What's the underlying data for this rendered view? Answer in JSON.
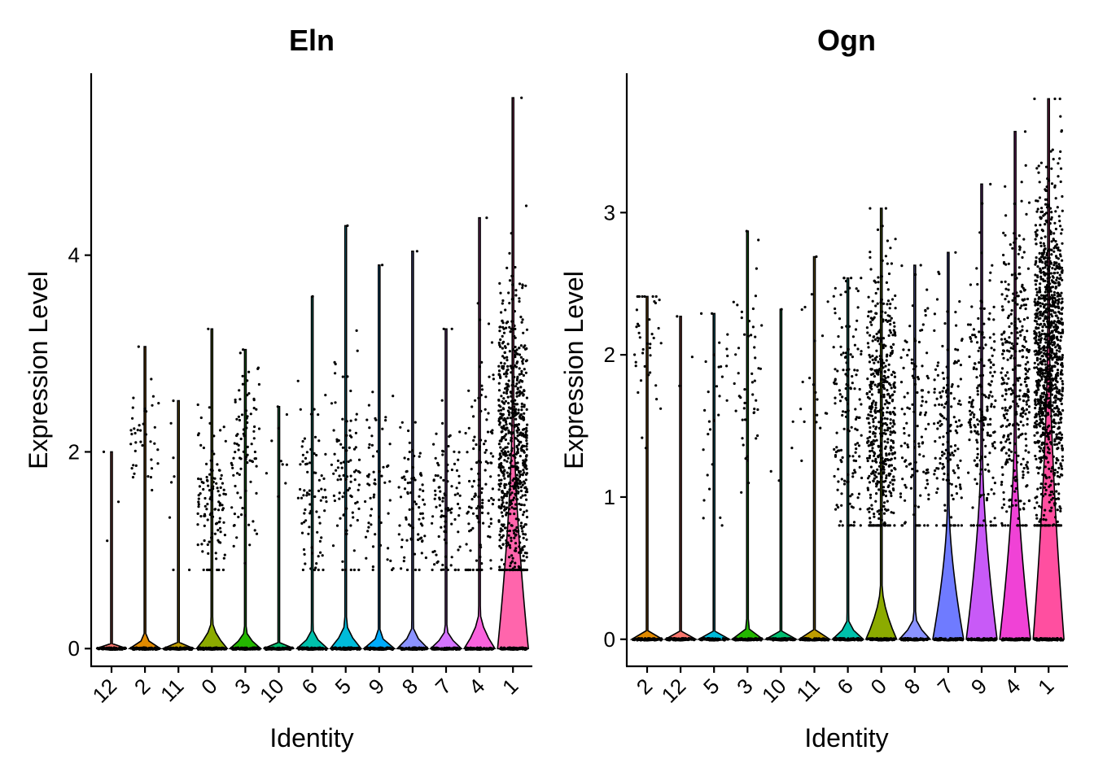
{
  "chart_data": [
    {
      "type": "violin",
      "title": "Eln",
      "xlabel": "Identity",
      "ylabel": "Expression Level",
      "ylim": [
        -0.18,
        5.85
      ],
      "yticks": [
        0,
        2,
        4
      ],
      "categories": [
        "12",
        "2",
        "11",
        "0",
        "3",
        "10",
        "6",
        "5",
        "9",
        "8",
        "7",
        "4",
        "1"
      ],
      "max_values": [
        2.0,
        3.07,
        2.52,
        3.25,
        3.04,
        2.46,
        3.58,
        4.3,
        3.9,
        4.04,
        3.25,
        4.38,
        5.6
      ],
      "n_expressing": [
        3,
        40,
        8,
        120,
        90,
        10,
        80,
        90,
        60,
        80,
        100,
        120,
        700
      ],
      "expr_center": [
        1.5,
        2.1,
        1.4,
        1.5,
        2.0,
        1.9,
        1.5,
        1.8,
        1.6,
        1.5,
        1.5,
        1.6,
        2.0
      ],
      "expr_spread": [
        0.4,
        0.3,
        0.5,
        0.4,
        0.45,
        0.4,
        0.5,
        0.5,
        0.5,
        0.5,
        0.5,
        0.6,
        0.8
      ],
      "violin_colors": [
        "#F8766D",
        "#E18A00",
        "#BE9C00",
        "#8CAB00",
        "#24B700",
        "#00BE70",
        "#00C1AB",
        "#00BBDA",
        "#00ACFC",
        "#8B93FF",
        "#D575FE",
        "#F962DD",
        "#FF65AC"
      ],
      "violin_fraction": [
        0.02,
        0.04,
        0.02,
        0.08,
        0.06,
        0.02,
        0.05,
        0.06,
        0.04,
        0.05,
        0.06,
        0.08,
        0.42
      ]
    },
    {
      "type": "violin",
      "title": "Ogn",
      "xlabel": "Identity",
      "ylabel": "Expression Level",
      "ylim": [
        -0.19,
        3.98
      ],
      "yticks": [
        0,
        1,
        2,
        3
      ],
      "categories": [
        "2",
        "12",
        "5",
        "3",
        "10",
        "11",
        "6",
        "0",
        "8",
        "7",
        "9",
        "4",
        "1"
      ],
      "max_values": [
        2.41,
        2.27,
        2.29,
        2.87,
        2.32,
        2.69,
        2.54,
        3.03,
        2.63,
        2.72,
        3.2,
        3.57,
        3.8
      ],
      "n_expressing": [
        40,
        3,
        30,
        50,
        5,
        20,
        150,
        500,
        120,
        150,
        200,
        350,
        1100
      ],
      "expr_center": [
        2.1,
        1.5,
        1.6,
        1.9,
        1.5,
        1.8,
        1.6,
        1.6,
        1.5,
        1.5,
        1.7,
        1.8,
        2.0
      ],
      "expr_spread": [
        0.3,
        0.4,
        0.4,
        0.4,
        0.4,
        0.4,
        0.45,
        0.5,
        0.45,
        0.45,
        0.5,
        0.55,
        0.6
      ],
      "violin_colors": [
        "#E18A00",
        "#F8766D",
        "#00BBDA",
        "#24B700",
        "#00BE70",
        "#BE9C00",
        "#00C1AB",
        "#8CAB00",
        "#8B93FF",
        "#6F7BFF",
        "#C85AF7",
        "#F042D6",
        "#FF4FA0"
      ],
      "violin_fraction": [
        0.02,
        0.01,
        0.02,
        0.03,
        0.01,
        0.02,
        0.05,
        0.12,
        0.06,
        0.34,
        0.4,
        0.4,
        0.56
      ]
    }
  ]
}
